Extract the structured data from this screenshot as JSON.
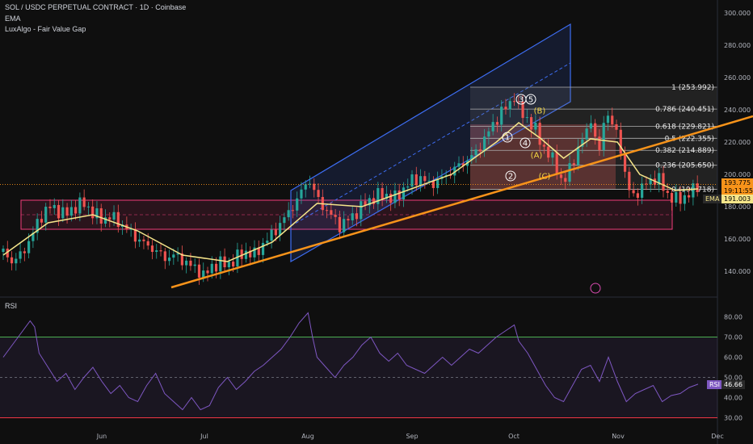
{
  "header": {
    "title": "SOL / USDC PERPETUAL CONTRACT · 1D · Coinbase",
    "indicator_1": "EMA",
    "indicator_2": "LuxAlgo - Fair Value Gap"
  },
  "price_tags": {
    "last_price": "193.775",
    "countdown": "19:11:55",
    "ema_label": "EMA",
    "ema_value": "191.003"
  },
  "rsi": {
    "label": "RSI",
    "value": "46.66",
    "upper_band": 70,
    "lower_band": 30,
    "mid_band": 50
  },
  "fib_levels": [
    {
      "text": "1 (253.992)",
      "price": 253.992
    },
    {
      "text": "0.786 (240.451)",
      "price": 240.451
    },
    {
      "text": "0.618 (229.821)",
      "price": 229.821
    },
    {
      "text": "0.5 (222.355)",
      "price": 222.355
    },
    {
      "text": "0.382 (214.889)",
      "price": 214.889
    },
    {
      "text": "0.236 (205.650)",
      "price": 205.65
    },
    {
      "text": "0 (190.718)",
      "price": 190.718
    }
  ],
  "waves": [
    {
      "label": "1",
      "circled": true,
      "color": "#ffffff"
    },
    {
      "label": "2",
      "circled": true,
      "color": "#ffffff"
    },
    {
      "label": "3",
      "circled": true,
      "color": "#ffffff"
    },
    {
      "label": "4",
      "circled": true,
      "color": "#ffffff"
    },
    {
      "label": "5",
      "circled": true,
      "color": "#ffffff"
    },
    {
      "label": "(A)",
      "circled": false,
      "color": "#f5d742"
    },
    {
      "label": "(B)",
      "circled": false,
      "color": "#f5d742"
    },
    {
      "label": "(C)",
      "circled": false,
      "color": "#f5d742"
    }
  ],
  "colors": {
    "up": "#26a69a",
    "down": "#ef5350",
    "ema": "#f5e58a",
    "trendline": "#f7931a",
    "channel": "#3d6df2",
    "rsi_line": "#7e57c2",
    "zone_border": "#f23c7a"
  },
  "chart_data": {
    "type": "candlestick",
    "price_axis": {
      "ticks": [
        140,
        160,
        180,
        200,
        220,
        240,
        260,
        280,
        300
      ],
      "tick_labels": [
        "140.000",
        "160.000",
        "180.000",
        "200.000",
        "220.000",
        "240.000",
        "260.000",
        "280.000",
        "300.000"
      ]
    },
    "time_axis": {
      "labels": [
        "Jun",
        "Jul",
        "Aug",
        "Sep",
        "Oct",
        "Nov",
        "Dec"
      ]
    },
    "rsi_axis": {
      "ticks": [
        30,
        40,
        50,
        60,
        70,
        80
      ],
      "tick_labels": [
        "30.00",
        "40.00",
        "50.00",
        "60.00",
        "70.00",
        "80.00"
      ]
    },
    "close_path": [
      [
        0,
        152
      ],
      [
        4,
        146
      ],
      [
        8,
        150
      ],
      [
        12,
        160
      ],
      [
        16,
        172
      ],
      [
        20,
        180
      ],
      [
        24,
        178
      ],
      [
        28,
        175
      ],
      [
        32,
        180
      ],
      [
        36,
        182
      ],
      [
        40,
        176
      ],
      [
        44,
        172
      ],
      [
        48,
        174
      ],
      [
        52,
        170
      ],
      [
        56,
        165
      ],
      [
        60,
        160
      ],
      [
        64,
        156
      ],
      [
        68,
        153
      ],
      [
        72,
        148
      ],
      [
        76,
        150
      ],
      [
        80,
        147
      ],
      [
        84,
        143
      ],
      [
        88,
        140
      ],
      [
        90,
        136
      ],
      [
        92,
        142
      ],
      [
        96,
        145
      ],
      [
        100,
        144
      ],
      [
        104,
        148
      ],
      [
        108,
        152
      ],
      [
        112,
        150
      ],
      [
        116,
        157
      ],
      [
        120,
        163
      ],
      [
        124,
        170
      ],
      [
        128,
        178
      ],
      [
        132,
        186
      ],
      [
        136,
        198
      ],
      [
        138,
        192
      ],
      [
        140,
        185
      ],
      [
        144,
        178
      ],
      [
        148,
        172
      ],
      [
        150,
        168
      ],
      [
        154,
        172
      ],
      [
        158,
        177
      ],
      [
        162,
        183
      ],
      [
        166,
        186
      ],
      [
        170,
        188
      ],
      [
        174,
        184
      ],
      [
        178,
        190
      ],
      [
        182,
        196
      ],
      [
        186,
        198
      ],
      [
        190,
        194
      ],
      [
        194,
        196
      ],
      [
        198,
        200
      ],
      [
        202,
        204
      ],
      [
        206,
        208
      ],
      [
        210,
        212
      ],
      [
        214,
        220
      ],
      [
        218,
        230
      ],
      [
        222,
        238
      ],
      [
        226,
        244
      ],
      [
        228,
        249
      ],
      [
        230,
        240
      ],
      [
        234,
        234
      ],
      [
        238,
        226
      ],
      [
        242,
        214
      ],
      [
        246,
        208
      ],
      [
        248,
        200
      ],
      [
        250,
        192
      ],
      [
        252,
        202
      ],
      [
        256,
        214
      ],
      [
        260,
        226
      ],
      [
        262,
        236
      ],
      [
        264,
        222
      ],
      [
        266,
        214
      ],
      [
        268,
        234
      ],
      [
        270,
        238
      ],
      [
        272,
        228
      ],
      [
        274,
        226
      ],
      [
        276,
        212
      ],
      [
        278,
        196
      ],
      [
        280,
        186
      ],
      [
        284,
        190
      ],
      [
        288,
        196
      ],
      [
        292,
        198
      ],
      [
        296,
        188
      ],
      [
        300,
        184
      ],
      [
        304,
        186
      ],
      [
        308,
        190
      ],
      [
        310,
        193.775
      ]
    ],
    "rsi_path": [
      [
        0,
        60
      ],
      [
        4,
        66
      ],
      [
        8,
        72
      ],
      [
        12,
        78
      ],
      [
        14,
        75
      ],
      [
        16,
        62
      ],
      [
        20,
        55
      ],
      [
        24,
        48
      ],
      [
        28,
        52
      ],
      [
        32,
        44
      ],
      [
        36,
        50
      ],
      [
        40,
        55
      ],
      [
        44,
        48
      ],
      [
        48,
        42
      ],
      [
        52,
        46
      ],
      [
        56,
        40
      ],
      [
        60,
        38
      ],
      [
        64,
        46
      ],
      [
        68,
        52
      ],
      [
        72,
        42
      ],
      [
        76,
        38
      ],
      [
        80,
        34
      ],
      [
        84,
        40
      ],
      [
        88,
        34
      ],
      [
        92,
        36
      ],
      [
        96,
        45
      ],
      [
        100,
        50
      ],
      [
        104,
        44
      ],
      [
        108,
        48
      ],
      [
        112,
        53
      ],
      [
        116,
        56
      ],
      [
        120,
        60
      ],
      [
        124,
        64
      ],
      [
        128,
        70
      ],
      [
        132,
        77
      ],
      [
        136,
        82
      ],
      [
        138,
        70
      ],
      [
        140,
        60
      ],
      [
        144,
        55
      ],
      [
        148,
        50
      ],
      [
        152,
        56
      ],
      [
        156,
        60
      ],
      [
        160,
        66
      ],
      [
        164,
        70
      ],
      [
        168,
        62
      ],
      [
        172,
        58
      ],
      [
        176,
        62
      ],
      [
        180,
        56
      ],
      [
        184,
        54
      ],
      [
        188,
        52
      ],
      [
        192,
        56
      ],
      [
        196,
        60
      ],
      [
        200,
        56
      ],
      [
        204,
        60
      ],
      [
        208,
        64
      ],
      [
        212,
        62
      ],
      [
        216,
        66
      ],
      [
        220,
        70
      ],
      [
        224,
        73
      ],
      [
        228,
        76
      ],
      [
        230,
        68
      ],
      [
        234,
        62
      ],
      [
        238,
        54
      ],
      [
        242,
        46
      ],
      [
        246,
        40
      ],
      [
        250,
        38
      ],
      [
        254,
        46
      ],
      [
        258,
        54
      ],
      [
        262,
        56
      ],
      [
        266,
        48
      ],
      [
        270,
        60
      ],
      [
        274,
        48
      ],
      [
        278,
        38
      ],
      [
        282,
        42
      ],
      [
        286,
        44
      ],
      [
        290,
        46
      ],
      [
        294,
        38
      ],
      [
        298,
        41
      ],
      [
        302,
        42
      ],
      [
        306,
        45
      ],
      [
        310,
        46.66
      ]
    ],
    "ema_path": [
      [
        0,
        150
      ],
      [
        20,
        170
      ],
      [
        40,
        175
      ],
      [
        60,
        165
      ],
      [
        80,
        150
      ],
      [
        100,
        146
      ],
      [
        120,
        158
      ],
      [
        140,
        182
      ],
      [
        160,
        180
      ],
      [
        180,
        190
      ],
      [
        200,
        200
      ],
      [
        220,
        220
      ],
      [
        230,
        232
      ],
      [
        240,
        222
      ],
      [
        250,
        210
      ],
      [
        262,
        222
      ],
      [
        274,
        220
      ],
      [
        284,
        200
      ],
      [
        300,
        190
      ],
      [
        310,
        191.003
      ]
    ]
  }
}
